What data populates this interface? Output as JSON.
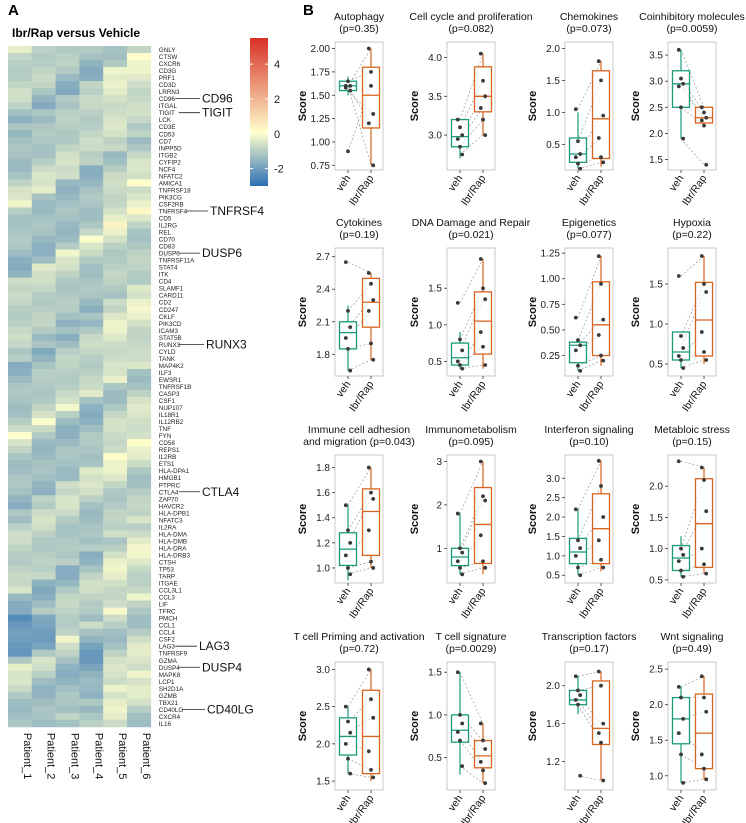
{
  "panel_labels": {
    "a": "A",
    "b": "B"
  },
  "heatmap": {
    "title": "Ibr/Rap versus Vehicle",
    "colorbar": {
      "ticks": [
        4,
        2,
        0,
        -2
      ],
      "range": [
        -3,
        5.5
      ],
      "colors": [
        "#2c6fb5",
        "#ffffcc",
        "#d73027"
      ]
    },
    "patients": [
      "Patient_1",
      "Patient_2",
      "Patient_3",
      "Patient_4",
      "Patient_5",
      "Patient_6"
    ],
    "genes": [
      "GNLY",
      "CTSW",
      "CXCR6",
      "CD3G",
      "PRF1",
      "CD3D",
      "LRRN3",
      "CD96",
      "ITGAL",
      "TIGIT",
      "LCK",
      "CD3E",
      "CD53",
      "CD7",
      "INPP5D",
      "ITGB2",
      "CYFIP2",
      "NCF4",
      "NFATC2",
      "AMICA1",
      "TNFRSF18",
      "PIK3CG",
      "CSF2RB",
      "TNFRSF4",
      "CD5",
      "IL2RG",
      "REL",
      "CD70",
      "CD83",
      "DUSP6",
      "TNFRSF11A",
      "STAT4",
      "ITK",
      "CD4",
      "SLAMF1",
      "CARD11",
      "CD2",
      "CD247",
      "CKLF",
      "PIK3CD",
      "ICAM3",
      "STAT5B",
      "RUNX3",
      "CYLD",
      "TANK",
      "MAP4K2",
      "ILF3",
      "EWSR1",
      "TNFRSF1B",
      "CASP3",
      "CSF1",
      "NUP107",
      "IL18R1",
      "IL12RB2",
      "TNF",
      "FYN",
      "CD58",
      "REPS1",
      "IL2RB",
      "ETS1",
      "HLA-DPA1",
      "HMGB1",
      "PTPRC",
      "CTLA4",
      "ZAP70",
      "HAVCR2",
      "HLA-DPB1",
      "NFATC3",
      "IL2RA",
      "HLA-DMA",
      "HLA-DMB",
      "HLA-DRA",
      "HLA-DRB3",
      "CTSH",
      "TP53",
      "TARP",
      "ITGAE",
      "CCL3L1",
      "CCL3",
      "LIF",
      "TFRC",
      "PMCH",
      "CCL1",
      "CCL4",
      "CSF2",
      "LAG3",
      "TNFRSF9",
      "GZMA",
      "DUSP4",
      "MAPK8",
      "LCP1",
      "SH2D1A",
      "GZMB",
      "TBX21",
      "CD40LG",
      "CXCR4",
      "IL16"
    ],
    "callouts": [
      "CD96",
      "TIGIT",
      "TNFRSF4",
      "DUSP6",
      "RUNX3",
      "CTLA4",
      "LAG3",
      "DUSP4",
      "CD40LG"
    ]
  },
  "chart_data": [
    {
      "type": "box",
      "title_lines": [
        "Autophagy",
        "(p=0.35)"
      ],
      "ylabel": "Score",
      "categories": [
        "veh",
        "Ibr/Rap"
      ],
      "yticks": [
        0.75,
        1.0,
        1.25,
        1.5,
        1.75,
        2.0
      ],
      "ylim": [
        0.7,
        2.07
      ],
      "tick_decimals": 2,
      "veh": {
        "q1": 1.55,
        "median": 1.6,
        "q3": 1.65,
        "low": 1.5,
        "high": 1.7,
        "points": [
          1.6,
          1.65,
          1.55,
          1.58,
          0.9,
          1.6
        ]
      },
      "ibr": {
        "q1": 1.15,
        "median": 1.5,
        "q3": 1.8,
        "low": 0.75,
        "high": 2.0,
        "points": [
          2.0,
          1.75,
          1.3,
          1.2,
          1.6,
          0.75
        ]
      }
    },
    {
      "type": "box",
      "title_lines": [
        "Cell cycle and proliferation",
        "(p=0.082)"
      ],
      "ylabel": "Score",
      "categories": [
        "veh",
        "Ibr/Rap"
      ],
      "yticks": [
        3.0,
        3.5,
        4.0
      ],
      "ylim": [
        2.55,
        4.2
      ],
      "tick_decimals": 1,
      "veh": {
        "q1": 2.85,
        "median": 2.98,
        "q3": 3.2,
        "low": 2.7,
        "high": 3.2,
        "points": [
          3.2,
          3.1,
          3.0,
          2.95,
          2.85,
          2.75
        ]
      },
      "ibr": {
        "q1": 3.3,
        "median": 3.5,
        "q3": 3.88,
        "low": 3.0,
        "high": 4.05,
        "points": [
          4.05,
          3.7,
          3.5,
          3.35,
          3.2,
          3.0
        ]
      }
    },
    {
      "type": "box",
      "title_lines": [
        "Chemokines",
        "(p=0.073)"
      ],
      "ylabel": "Score",
      "categories": [
        "veh",
        "Ibr/Rap"
      ],
      "yticks": [
        0.5,
        1.0,
        1.5,
        2.0
      ],
      "ylim": [
        0.1,
        2.1
      ],
      "tick_decimals": 1,
      "veh": {
        "q1": 0.22,
        "median": 0.35,
        "q3": 0.6,
        "low": 0.12,
        "high": 1.0,
        "points": [
          1.05,
          0.55,
          0.35,
          0.3,
          0.2,
          0.12
        ]
      },
      "ibr": {
        "q1": 0.28,
        "median": 0.9,
        "q3": 1.65,
        "low": 0.15,
        "high": 1.8,
        "points": [
          1.8,
          1.5,
          0.95,
          0.6,
          0.3,
          0.22
        ]
      }
    },
    {
      "type": "box",
      "title_lines": [
        "Coinhibitory molecules",
        "(p=0.0059)"
      ],
      "ylabel": "Score",
      "categories": [
        "veh",
        "Ibr/Rap"
      ],
      "yticks": [
        1.5,
        2.0,
        2.5,
        3.0,
        3.5
      ],
      "ylim": [
        1.3,
        3.75
      ],
      "tick_decimals": 1,
      "veh": {
        "q1": 2.5,
        "median": 2.95,
        "q3": 3.2,
        "low": 1.9,
        "high": 3.6,
        "points": [
          3.6,
          3.05,
          2.95,
          2.9,
          2.5,
          1.9
        ]
      },
      "ibr": {
        "q1": 2.2,
        "median": 2.3,
        "q3": 2.5,
        "low": 2.15,
        "high": 2.5,
        "points": [
          2.5,
          2.4,
          2.3,
          2.25,
          2.15,
          1.4
        ]
      }
    },
    {
      "type": "box",
      "title_lines": [
        "Cytokines",
        "(p=0.19)"
      ],
      "ylabel": "Score",
      "categories": [
        "veh",
        "Ibr/Rap"
      ],
      "yticks": [
        1.8,
        2.1,
        2.4,
        2.7
      ],
      "ylim": [
        1.6,
        2.78
      ],
      "tick_decimals": 1,
      "veh": {
        "q1": 1.85,
        "median": 2.0,
        "q3": 2.1,
        "low": 1.65,
        "high": 2.25,
        "points": [
          2.65,
          2.2,
          2.05,
          1.95,
          1.85,
          1.65
        ]
      },
      "ibr": {
        "q1": 2.05,
        "median": 2.28,
        "q3": 2.5,
        "low": 1.75,
        "high": 2.55,
        "points": [
          2.55,
          2.45,
          2.3,
          2.2,
          1.9,
          1.75
        ]
      }
    },
    {
      "type": "box",
      "title_lines": [
        "DNA Damage and Repair",
        "(p=0.021)"
      ],
      "ylabel": "Score",
      "categories": [
        "veh",
        "Ibr/Rap"
      ],
      "yticks": [
        0.5,
        1.0,
        1.5
      ],
      "ylim": [
        0.3,
        2.05
      ],
      "tick_decimals": 1,
      "veh": {
        "q1": 0.45,
        "median": 0.55,
        "q3": 0.75,
        "low": 0.4,
        "high": 0.9,
        "points": [
          1.3,
          0.8,
          0.65,
          0.5,
          0.45,
          0.4
        ]
      },
      "ibr": {
        "q1": 0.6,
        "median": 1.05,
        "q3": 1.45,
        "low": 0.4,
        "high": 1.9,
        "points": [
          1.9,
          1.5,
          1.35,
          0.9,
          0.7,
          0.45
        ]
      }
    },
    {
      "type": "box",
      "title_lines": [
        "Epigenetics",
        "(p=0.077)"
      ],
      "ylabel": "Score",
      "categories": [
        "veh",
        "Ibr/Rap"
      ],
      "yticks": [
        0.25,
        0.5,
        0.75,
        1.0,
        1.25
      ],
      "ylim": [
        0.05,
        1.3
      ],
      "tick_decimals": 2,
      "veh": {
        "q1": 0.18,
        "median": 0.35,
        "q3": 0.38,
        "low": 0.1,
        "high": 0.42,
        "points": [
          0.62,
          0.4,
          0.35,
          0.3,
          0.15,
          0.1
        ]
      },
      "ibr": {
        "q1": 0.25,
        "median": 0.55,
        "q3": 0.97,
        "low": 0.15,
        "high": 1.22,
        "points": [
          1.22,
          0.95,
          0.6,
          0.45,
          0.25,
          0.2
        ]
      }
    },
    {
      "type": "box",
      "title_lines": [
        "Hypoxia",
        "(p=0.22)"
      ],
      "ylabel": "Score",
      "categories": [
        "veh",
        "Ibr/Rap"
      ],
      "yticks": [
        0.5,
        1.0,
        1.5
      ],
      "ylim": [
        0.35,
        1.95
      ],
      "tick_decimals": 1,
      "veh": {
        "q1": 0.55,
        "median": 0.65,
        "q3": 0.9,
        "low": 0.45,
        "high": 0.9,
        "points": [
          1.6,
          0.85,
          0.7,
          0.6,
          0.55,
          0.45
        ]
      },
      "ibr": {
        "q1": 0.6,
        "median": 1.05,
        "q3": 1.52,
        "low": 0.5,
        "high": 1.85,
        "points": [
          1.85,
          1.5,
          1.4,
          0.9,
          0.65,
          0.55
        ]
      }
    },
    {
      "type": "box",
      "title_lines": [
        "Immune cell adhesion",
        "and migration (p=0.043)"
      ],
      "ylabel": "Score",
      "categories": [
        "veh",
        "Ibr/Rap"
      ],
      "yticks": [
        1.0,
        1.2,
        1.4,
        1.6,
        1.8
      ],
      "ylim": [
        0.88,
        1.9
      ],
      "tick_decimals": 1,
      "veh": {
        "q1": 1.02,
        "median": 1.15,
        "q3": 1.28,
        "low": 0.9,
        "high": 1.5,
        "points": [
          1.5,
          1.3,
          1.2,
          1.1,
          1.0,
          0.95
        ]
      },
      "ibr": {
        "q1": 1.1,
        "median": 1.45,
        "q3": 1.63,
        "low": 1.0,
        "high": 1.8,
        "points": [
          1.8,
          1.6,
          1.55,
          1.3,
          1.05,
          1.0
        ]
      }
    },
    {
      "type": "box",
      "title_lines": [
        "Immunometabolism",
        "(p=0.095)"
      ],
      "ylabel": "Score",
      "categories": [
        "veh",
        "Ibr/Rap"
      ],
      "yticks": [
        1,
        2,
        3
      ],
      "ylim": [
        0.2,
        3.15
      ],
      "tick_decimals": 0,
      "veh": {
        "q1": 0.6,
        "median": 0.8,
        "q3": 1.0,
        "low": 0.4,
        "high": 1.8,
        "points": [
          1.8,
          1.0,
          0.9,
          0.7,
          0.55,
          0.4
        ]
      },
      "ibr": {
        "q1": 0.65,
        "median": 1.55,
        "q3": 2.4,
        "low": 0.4,
        "high": 3.0,
        "points": [
          3.0,
          2.2,
          2.1,
          1.3,
          0.7,
          0.55
        ]
      }
    },
    {
      "type": "box",
      "title_lines": [
        "Interferon signaling",
        "(p=0.10)"
      ],
      "ylabel": "Score",
      "categories": [
        "veh",
        "Ibr/Rap"
      ],
      "yticks": [
        0.5,
        1.0,
        1.5,
        2.0,
        2.5,
        3.0
      ],
      "ylim": [
        0.3,
        3.6
      ],
      "tick_decimals": 1,
      "veh": {
        "q1": 0.8,
        "median": 1.1,
        "q3": 1.45,
        "low": 0.5,
        "high": 2.2,
        "points": [
          2.2,
          1.4,
          1.2,
          1.0,
          0.7,
          0.5
        ]
      },
      "ibr": {
        "q1": 0.8,
        "median": 1.7,
        "q3": 2.6,
        "low": 0.6,
        "high": 3.45,
        "points": [
          3.45,
          2.8,
          2.0,
          1.4,
          0.9,
          0.7
        ]
      }
    },
    {
      "type": "box",
      "title_lines": [
        "Metabloic stress",
        "(p=0.15)"
      ],
      "ylabel": "Score",
      "categories": [
        "veh",
        "Ibr/Rap"
      ],
      "yticks": [
        0.5,
        1.0,
        1.5,
        2.0
      ],
      "ylim": [
        0.45,
        2.5
      ],
      "tick_decimals": 1,
      "veh": {
        "q1": 0.65,
        "median": 0.85,
        "q3": 1.05,
        "low": 0.55,
        "high": 1.2,
        "points": [
          2.4,
          1.0,
          0.9,
          0.8,
          0.65,
          0.55
        ]
      },
      "ibr": {
        "q1": 0.7,
        "median": 1.4,
        "q3": 2.12,
        "low": 0.6,
        "high": 2.3,
        "points": [
          2.3,
          2.1,
          1.6,
          1.0,
          0.75,
          0.6
        ]
      }
    },
    {
      "type": "box",
      "title_lines": [
        "T cell Priming and activation",
        "(p=0.72)"
      ],
      "ylabel": "Score",
      "categories": [
        "veh",
        "Ibr/Rap"
      ],
      "yticks": [
        1.5,
        2.0,
        2.5,
        3.0
      ],
      "ylim": [
        1.38,
        3.1
      ],
      "tick_decimals": 1,
      "veh": {
        "q1": 1.85,
        "median": 2.1,
        "q3": 2.35,
        "low": 1.6,
        "high": 2.5,
        "points": [
          2.5,
          2.3,
          2.15,
          2.0,
          1.8,
          1.6
        ]
      },
      "ibr": {
        "q1": 1.6,
        "median": 2.1,
        "q3": 2.72,
        "low": 1.5,
        "high": 3.0,
        "points": [
          3.0,
          2.6,
          2.35,
          1.9,
          1.65,
          1.55
        ]
      }
    },
    {
      "type": "box",
      "title_lines": [
        "T cell signature",
        "(p=0.0029)"
      ],
      "ylabel": "Score",
      "categories": [
        "veh",
        "Ibr/Rap"
      ],
      "yticks": [
        0.5,
        1.0,
        1.5
      ],
      "ylim": [
        0.12,
        1.62
      ],
      "tick_decimals": 1,
      "veh": {
        "q1": 0.68,
        "median": 0.82,
        "q3": 1.0,
        "low": 0.3,
        "high": 1.5,
        "points": [
          1.5,
          1.0,
          0.9,
          0.8,
          0.7,
          0.4
        ]
      },
      "ibr": {
        "q1": 0.38,
        "median": 0.52,
        "q3": 0.7,
        "low": 0.2,
        "high": 0.9,
        "points": [
          0.9,
          0.7,
          0.6,
          0.45,
          0.35,
          0.2
        ]
      }
    },
    {
      "type": "box",
      "title_lines": [
        "Transcription factors",
        "(p=0.17)"
      ],
      "ylabel": "Score",
      "categories": [
        "veh",
        "Ibr/Rap"
      ],
      "yticks": [
        1.2,
        1.6,
        2.0
      ],
      "ylim": [
        0.9,
        2.25
      ],
      "tick_decimals": 1,
      "veh": {
        "q1": 1.8,
        "median": 1.85,
        "q3": 1.95,
        "low": 1.7,
        "high": 2.1,
        "points": [
          2.1,
          1.95,
          1.9,
          1.85,
          1.8,
          1.05
        ]
      },
      "ibr": {
        "q1": 1.38,
        "median": 1.55,
        "q3": 2.05,
        "low": 1.0,
        "high": 2.15,
        "points": [
          2.15,
          2.0,
          1.6,
          1.5,
          1.4,
          1.0
        ]
      }
    },
    {
      "type": "box",
      "title_lines": [
        "Wnt signaling",
        "(p=0.49)"
      ],
      "ylabel": "Score",
      "categories": [
        "veh",
        "Ibr/Rap"
      ],
      "yticks": [
        1.0,
        1.5,
        2.0,
        2.5
      ],
      "ylim": [
        0.8,
        2.6
      ],
      "tick_decimals": 1,
      "veh": {
        "q1": 1.45,
        "median": 1.8,
        "q3": 2.1,
        "low": 0.9,
        "high": 2.25,
        "points": [
          2.25,
          2.1,
          1.8,
          1.6,
          1.3,
          0.9
        ]
      },
      "ibr": {
        "q1": 1.1,
        "median": 1.6,
        "q3": 2.15,
        "low": 0.95,
        "high": 2.4,
        "points": [
          2.4,
          2.1,
          1.9,
          1.3,
          1.1,
          0.95
        ]
      }
    }
  ],
  "colors": {
    "veh": "#1a9a7a",
    "ibr": "#d8641e",
    "dot": "#3a3a3a",
    "pair_line": "#9a9a9a"
  }
}
